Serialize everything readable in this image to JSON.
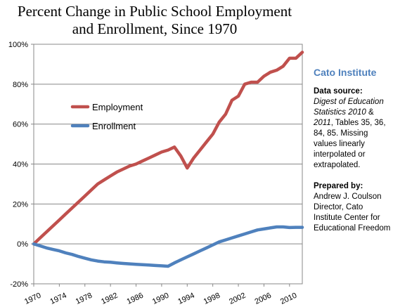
{
  "title": {
    "line1": "Percent Change in Public School Employment",
    "line2": "and Enrollment, Since 1970"
  },
  "sidebar": {
    "organization": "Cato Institute",
    "source_header": "Data source:",
    "source_italic": "Digest of Education Statistics 2010",
    "source_amp": "  &",
    "source_italic2": "2011",
    "source_rest": ", Tables 35, 36, 84, 85.  Missing values linearly interpolated or extrapolated.",
    "prepared_header": "Prepared by:",
    "prepared_text": "Andrew J. Coulson Director, Cato Institute Center for Educational Freedom"
  },
  "colors": {
    "employment": "#c0504d",
    "enrollment": "#4f81bd",
    "organization": "#4f81bd"
  },
  "chart_data": {
    "type": "line",
    "title": "Percent Change in Public School Employment and Enrollment, Since 1970",
    "xlabel": "",
    "ylabel": "",
    "xlim": [
      1970,
      2012
    ],
    "ylim": [
      -20,
      100
    ],
    "y_ticks": [
      "-20%",
      "0%",
      "20%",
      "40%",
      "60%",
      "80%",
      "100%"
    ],
    "y_tick_values": [
      -20,
      0,
      20,
      40,
      60,
      80,
      100
    ],
    "x_ticks": [
      "1970",
      "1974",
      "1978",
      "1982",
      "1986",
      "1990",
      "1994",
      "1998",
      "2002",
      "2006",
      "2010"
    ],
    "x_tick_values": [
      1970,
      1974,
      1978,
      1982,
      1986,
      1990,
      1994,
      1998,
      2002,
      2006,
      2010
    ],
    "grid": "horizontal",
    "legend_position": "upper-left",
    "x": [
      1970,
      1971,
      1972,
      1973,
      1974,
      1975,
      1976,
      1977,
      1978,
      1979,
      1980,
      1981,
      1982,
      1983,
      1984,
      1985,
      1986,
      1987,
      1988,
      1989,
      1990,
      1991,
      1992,
      1993,
      1994,
      1995,
      1996,
      1997,
      1998,
      1999,
      2000,
      2001,
      2002,
      2003,
      2004,
      2005,
      2006,
      2007,
      2008,
      2009,
      2010,
      2011,
      2012
    ],
    "series": [
      {
        "name": "Employment",
        "color": "#c0504d",
        "values": [
          0,
          3,
          6,
          9,
          12,
          15,
          18,
          21,
          24,
          27,
          30,
          32,
          34,
          36,
          37.5,
          39,
          40,
          41.5,
          43,
          44.5,
          46,
          47,
          48.5,
          44,
          38,
          43,
          47,
          51,
          55,
          61,
          65,
          72,
          74,
          80,
          81,
          81,
          84,
          86,
          87,
          89,
          93,
          93,
          96
        ]
      },
      {
        "name": "Enrollment",
        "color": "#4f81bd",
        "values": [
          0,
          -1,
          -2,
          -2.8,
          -3.5,
          -4.5,
          -5.3,
          -6.3,
          -7.2,
          -8,
          -8.6,
          -9,
          -9.2,
          -9.5,
          -9.8,
          -10,
          -10.2,
          -10.4,
          -10.6,
          -10.8,
          -11,
          -11.2,
          -9.5,
          -8,
          -6.5,
          -5,
          -3.5,
          -2,
          -0.5,
          1,
          2,
          3,
          4,
          5,
          6,
          7,
          7.5,
          8,
          8.5,
          8.5,
          8.2,
          8.3,
          8.3
        ]
      }
    ]
  }
}
